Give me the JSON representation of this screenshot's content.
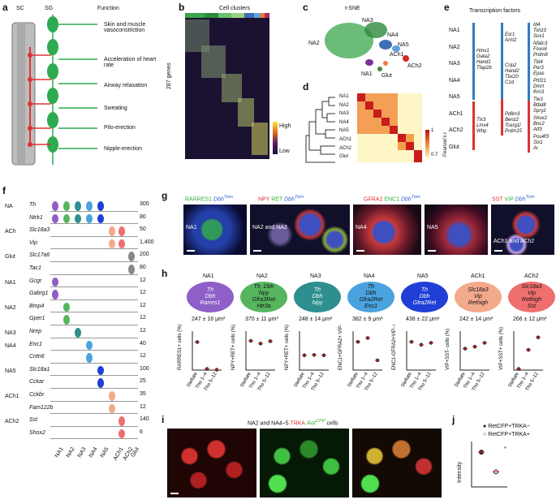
{
  "panels": {
    "a": {
      "letter": "a",
      "header_sc": "SC",
      "header_sg": "SG",
      "header_function": "Function",
      "functions": [
        "Skin and muscle vasoconstriction",
        "Acceleration of heart rate",
        "Airway relaxation",
        "Sweating",
        "Pilo-erection",
        "Nipple-erection"
      ]
    },
    "b": {
      "letter": "b",
      "title": "Cell clusters",
      "ylabel": "287 genes",
      "legend_high": "High",
      "legend_low": "Low",
      "cluster_colors": [
        "#3aa54a",
        "#2d8a3c",
        "#6ac16e",
        "#9bd27d",
        "#3b6fb6",
        "#5fa3d9",
        "#f07b3f",
        "#d62728",
        "#7b3294"
      ]
    },
    "c": {
      "letter": "c",
      "title": "t-SNE",
      "labels": [
        "NA1",
        "NA2",
        "NA3",
        "NA4",
        "NA5",
        "ACh1",
        "ACh2",
        "Glut"
      ]
    },
    "d": {
      "letter": "d",
      "rows": [
        "NA1",
        "NA2",
        "NA3",
        "NA4",
        "NA5",
        "ACh1",
        "ACh2",
        "Glut"
      ],
      "scale_max": "1",
      "scale_min": "0.7",
      "scale_label": "Pearson's r"
    },
    "e": {
      "letter": "e",
      "title": "Transcription factors",
      "rows": [
        "NA1",
        "NA2",
        "NA3",
        "NA4",
        "NA5",
        "ACh1",
        "ACh2",
        "Glut"
      ],
      "col1": "Hmx1\nGata2\nHand1\nTfap2b",
      "col1b": "Tlx3\nLmx4\nWhp",
      "col2a": "Esr1\nArnt2",
      "col2b": "Crip2\nHand2\nTbx20\nC1d",
      "col2c": "Pdlim3\nBenz2\nTcerg1l\nPrdm15",
      "col3": [
        "Id4\nTshz3\nSox1",
        "Nfatc3\nFoxo6\nPrdm8",
        "Tbl4\nPer3\nEpas",
        "Phf21\nDmrt\nRrn3",
        "Tle3\nBtbd8\nSpry2",
        "Shox2\nBnc2\nAtf3",
        "Pou4f3\nSix1\nAr"
      ]
    },
    "f": {
      "letter": "f",
      "genes": [
        {
          "group": "NA",
          "gene": "Th",
          "max": "300"
        },
        {
          "group": "",
          "gene": "Ntrk1",
          "max": "80"
        },
        {
          "group": "ACh",
          "gene": "Slc18a3",
          "max": "50"
        },
        {
          "group": "",
          "gene": "Vip",
          "max": "1,400"
        },
        {
          "group": "Glut",
          "gene": "Slc17a6",
          "max": "200"
        },
        {
          "group": "",
          "gene": "Tac1",
          "max": "80"
        },
        {
          "group": "NA1",
          "gene": "Gcgr",
          "max": "12"
        },
        {
          "group": "",
          "gene": "Gabrg1",
          "max": "12"
        },
        {
          "group": "NA2",
          "gene": "Bmp4",
          "max": "12"
        },
        {
          "group": "",
          "gene": "Gper1",
          "max": "12"
        },
        {
          "group": "NA3",
          "gene": "Nrep",
          "max": "12"
        },
        {
          "group": "NA4",
          "gene": "Enc1",
          "max": "40"
        },
        {
          "group": "",
          "gene": "Cntn6",
          "max": "12"
        },
        {
          "group": "NA5",
          "gene": "Slc18a1",
          "max": "100"
        },
        {
          "group": "",
          "gene": "Cckar",
          "max": "25"
        },
        {
          "group": "ACh1",
          "gene": "Cckbr",
          "max": "35"
        },
        {
          "group": "",
          "gene": "Fam122b",
          "max": "12"
        },
        {
          "group": "ACh2",
          "gene": "Sst",
          "max": "140"
        },
        {
          "group": "",
          "gene": "Shox2",
          "max": "6"
        }
      ],
      "xlabels": [
        "NA1",
        "NA2",
        "NA3",
        "NA4",
        "NA5",
        "ACh1",
        "ACh2",
        "Glut"
      ]
    },
    "g": {
      "letter": "g",
      "headers": [
        {
          "a": "RARRES1",
          "b": "Dbh",
          "c": "Tom"
        },
        {
          "a": "NPY",
          "b": "RET",
          "c": "Dbh",
          "d": "Tom"
        },
        {
          "a": "GFRA2",
          "b": "ENC1",
          "c": "Dbh",
          "d": "Tom"
        },
        {
          "a": "SST",
          "b": "VIP",
          "c": "Dbh",
          "d": "Tom"
        }
      ],
      "images": [
        "NA1",
        "NA2 and NA3",
        "NA4",
        "NA5",
        "ACh1 and ACh2"
      ]
    },
    "h": {
      "letter": "h",
      "cells": [
        {
          "name": "NA1",
          "genes": "Th\nDbh\nRarres1",
          "area": "247 ± 16 μm²",
          "color": "#8e5fc7"
        },
        {
          "name": "NA2",
          "genes": "Th, Dbh\nNpy\nGfra3Ret\nHtr3a",
          "area": "370 ± 11 μm²",
          "color": "#57b560"
        },
        {
          "name": "NA3",
          "genes": "Th\nDbh\nNpy",
          "area": "248 ± 14 μm²",
          "color": "#2f8f8f"
        },
        {
          "name": "NA4",
          "genes": "Th\nDbh\nGfra2Ret\nEnc1",
          "area": "382 ± 9 μm²",
          "color": "#4aa3df"
        },
        {
          "name": "NA5",
          "genes": "Th\nDbh\nGfra2Ret",
          "area": "438 ± 22 μm²",
          "color": "#1f3fd6"
        },
        {
          "name": "ACh1",
          "genes": "Slc18a3\nVip\nRethigh",
          "area": "242 ± 14 μm²",
          "color": "#f3a98c"
        },
        {
          "name": "ACh2",
          "genes": "Slc18a3\nVip\nRethigh\nSst",
          "area": "266 ± 12 μm²",
          "color": "#ef6f6f"
        }
      ],
      "ylabels": [
        "RARRES1+ cells (%)",
        "NPY+RET+ cells (%)",
        "NPY+RET+ cells (%)",
        "ENC1+GFRA2+ VIP- cells (%)",
        "ENC1-GFRA2+VIP- cells (%)",
        "VIP+SST- cells (%)",
        "VIP+SST+ cells (%)"
      ],
      "xcats": [
        "Stellate",
        "Tho 1–4",
        "Tho 5–12"
      ],
      "yticks": [
        "0",
        "5",
        "10"
      ]
    },
    "i": {
      "letter": "i",
      "caption_a": "NA2 and NA4–5 ",
      "caption_b": "TRKA",
      "caption_c": " Ret",
      "caption_d": "CFP",
      "caption_e": " cells"
    },
    "j": {
      "letter": "j",
      "legend1": "RetCFP+TRKA−",
      "legend2": "RetCFP+TRKA+",
      "ylabel": "Intensity",
      "star": "*"
    }
  },
  "chart_data": [
    {
      "type": "scatter",
      "title": "",
      "ylabel": "RARRES1+ cells (%)",
      "categories": [
        "Stellate",
        "Tho 1–4",
        "Tho 5–12"
      ],
      "ylim": [
        0,
        10
      ],
      "series": [
        {
          "values": [
            7.2,
            0.3,
            0.1
          ]
        }
      ]
    },
    {
      "type": "scatter",
      "title": "",
      "ylabel": "NPY+RET+ cells (%)",
      "categories": [
        "Stellate",
        "Tho 1–4",
        "Tho 5–12"
      ],
      "ylim": [
        0,
        10
      ],
      "series": [
        {
          "values": [
            7.5,
            6.8,
            7.4
          ]
        }
      ]
    },
    {
      "type": "scatter",
      "title": "",
      "ylabel": "NPY+RET+ cells (%)",
      "categories": [
        "Stellate",
        "Tho 1–4",
        "Tho 5–12"
      ],
      "ylim": [
        0,
        10
      ],
      "series": [
        {
          "values": [
            3.8,
            3.9,
            3.8
          ]
        }
      ]
    },
    {
      "type": "scatter",
      "title": "",
      "ylabel": "ENC1+GFRA2+ VIP- cells (%)",
      "categories": [
        "Stellate",
        "Tho 1–4",
        "Tho 5–12"
      ],
      "ylim": [
        0,
        20
      ],
      "series": [
        {
          "values": [
            14.5,
            16.5,
            5
          ]
        }
      ]
    },
    {
      "type": "scatter",
      "title": "",
      "ylabel": "ENC1-GFRA2+VIP- cells (%)",
      "categories": [
        "Stellate",
        "Tho 1–4",
        "Tho 5–12"
      ],
      "ylim": [
        0,
        40
      ],
      "series": [
        {
          "values": [
            29,
            26,
            28
          ]
        }
      ]
    },
    {
      "type": "scatter",
      "title": "",
      "ylabel": "VIP+SST- cells (%)",
      "categories": [
        "Stellate",
        "Tho 1–4",
        "Tho 5–12"
      ],
      "ylim": [
        0,
        10
      ],
      "series": [
        {
          "values": [
            5.5,
            6,
            7
          ]
        }
      ]
    },
    {
      "type": "scatter",
      "title": "",
      "ylabel": "VIP+SST+ cells (%)",
      "categories": [
        "Stellate",
        "Tho 1–4",
        "Tho 5–12"
      ],
      "ylim": [
        0,
        10
      ],
      "series": [
        {
          "values": [
            0.3,
            5.2,
            8.4
          ]
        }
      ]
    },
    {
      "type": "scatter",
      "title": "",
      "ylabel": "Intensity",
      "categories": [
        "RetCFP+TRKA−",
        "RetCFP+TRKA+"
      ],
      "series": [
        {
          "values": [
            2.3,
            1.0
          ]
        }
      ]
    }
  ]
}
